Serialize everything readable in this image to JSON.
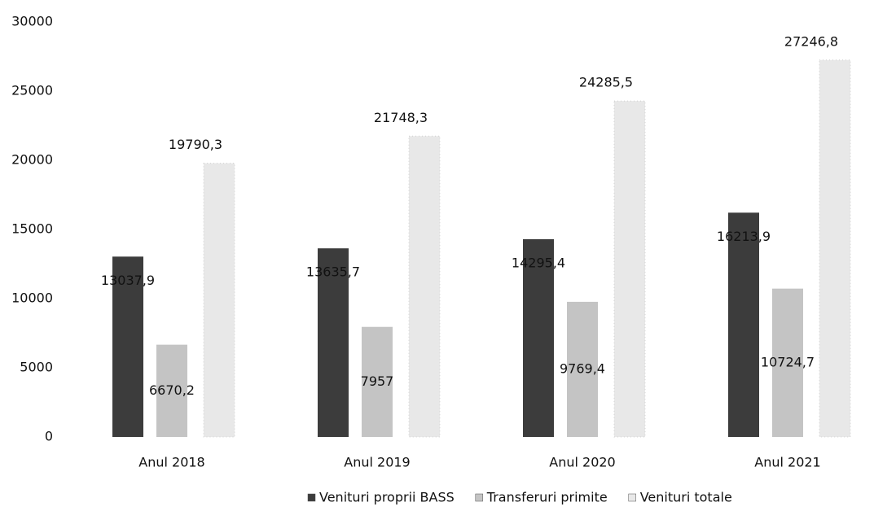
{
  "chart_data": {
    "type": "bar",
    "categories": [
      "Anul 2018",
      "Anul 2019",
      "Anul 2020",
      "Anul 2021"
    ],
    "series": [
      {
        "name": "Venituri proprii BASS",
        "color": "#3c3c3c",
        "values": [
          13037.9,
          13635.7,
          14295.4,
          16213.9
        ],
        "value_labels": [
          "13037,9",
          "13635,7",
          "14295,4",
          "16213,9"
        ]
      },
      {
        "name": "Transferuri primite",
        "color": "#c4c4c4",
        "values": [
          6670.2,
          7957,
          9769.4,
          10724.7
        ],
        "value_labels": [
          "6670,2",
          "7957",
          "9769,4",
          "10724,7"
        ]
      },
      {
        "name": "Venituri totale",
        "color": "#e8e8e8",
        "values": [
          19790.3,
          21748.3,
          24285.5,
          27246.8
        ],
        "value_labels": [
          "19790,3",
          "21748,3",
          "24285,5",
          "27246,8"
        ]
      }
    ],
    "ylim": [
      0,
      30000
    ],
    "yticks": [
      0,
      5000,
      10000,
      15000,
      20000,
      25000,
      30000
    ],
    "grid": false
  }
}
